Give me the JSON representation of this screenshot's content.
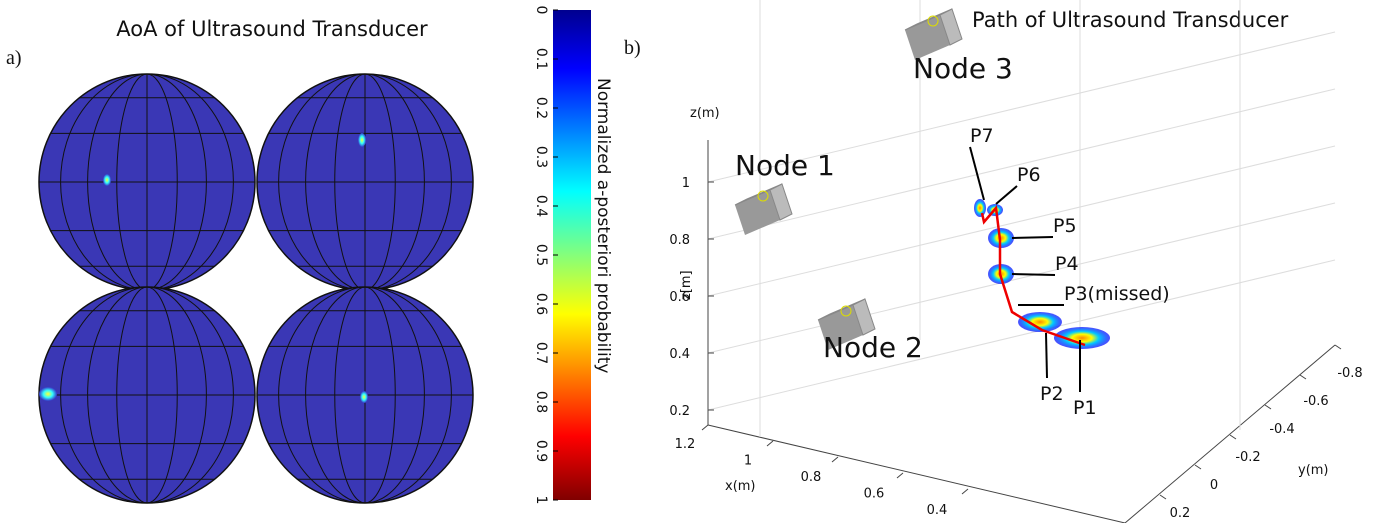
{
  "panel_a": {
    "label": "a)",
    "title": "AoA of Ultrasound Transducer"
  },
  "colorbar": {
    "label": "Normalized a-posteriori probability",
    "lim": [
      0,
      1
    ],
    "ticks": [
      0,
      0.1,
      0.2,
      0.3,
      0.4,
      0.5,
      0.6,
      0.7,
      0.8,
      0.9,
      1
    ]
  },
  "panel_b": {
    "label": "b)",
    "title": "Path of Ultrasound Transducer",
    "nodes": [
      "Node 1",
      "Node 2",
      "Node 3"
    ],
    "points": [
      "P7",
      "P6",
      "P5",
      "P4",
      "P3(missed)",
      "P2",
      "P1"
    ],
    "z_axis_label": "z(m)",
    "z_inner_label": "z[m]",
    "x_axis_label": "x(m)",
    "y_axis_label": "y(m)",
    "zticks": [
      0.2,
      0.4,
      0.6,
      0.8,
      1
    ],
    "xticks": [
      1.2,
      1,
      0.8,
      0.6,
      0.4
    ],
    "yticks": [
      -0.8,
      -0.6,
      -0.4,
      -0.2,
      0,
      0.2
    ]
  }
}
